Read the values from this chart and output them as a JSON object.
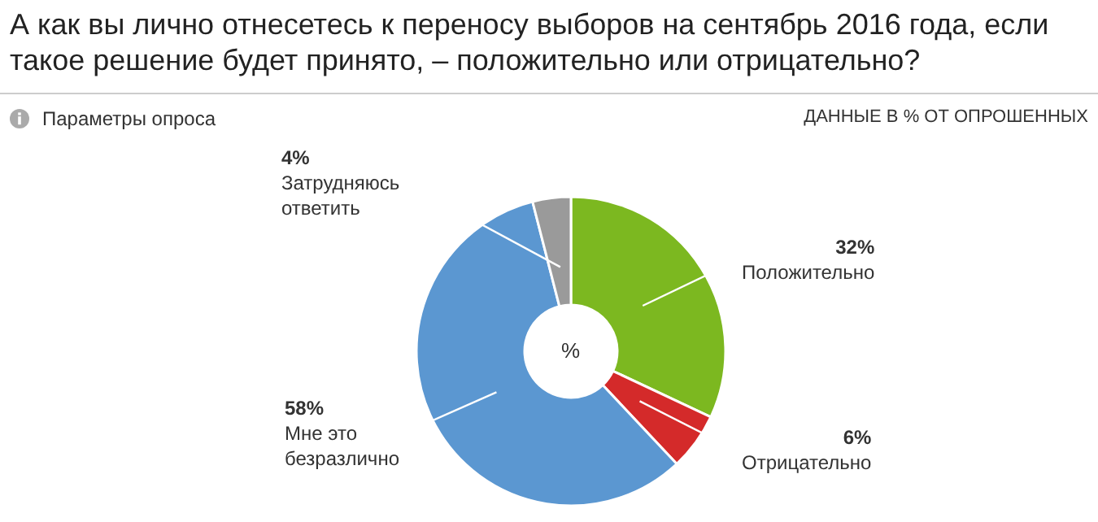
{
  "chart_data": {
    "type": "donut",
    "title": "А как вы лично отнесетесь к переносу выборов на сентябрь 2016 года, если такое решение будет принято, – положительно или отрицательно?",
    "annotations": [
      "Параметры опроса",
      "ДАННЫЕ В % ОТ ОПРОШЕННЫХ",
      "%"
    ],
    "categories": [
      "Положительно",
      "Отрицательно",
      "Мне это безразлично",
      "Затрудняюсь ответить"
    ],
    "values": [
      32,
      6,
      58,
      4
    ],
    "value_labels": [
      "32%",
      "6%",
      "58%",
      "4%"
    ],
    "colors": [
      "#7cb820",
      "#d42a2a",
      "#5b97d1",
      "#9a9a9a"
    ],
    "legend": false
  }
}
